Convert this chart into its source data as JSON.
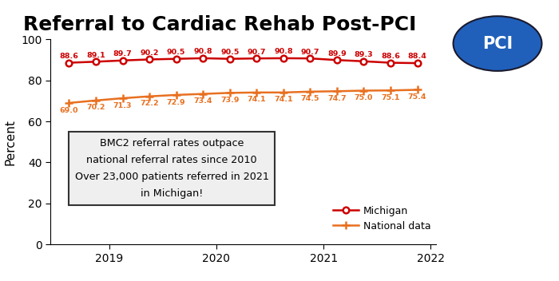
{
  "title": "Referral to Cardiac Rehab Post-PCI",
  "ylabel": "Percent",
  "ylim": [
    0,
    100
  ],
  "yticks": [
    0,
    20,
    40,
    60,
    80,
    100
  ],
  "x_labels": [
    "2019",
    "2020",
    "2021",
    "2022"
  ],
  "x_tick_positions": [
    1.5,
    5.5,
    9.5,
    13.5
  ],
  "michigan_values": [
    88.6,
    89.1,
    89.7,
    90.2,
    90.5,
    90.8,
    90.5,
    90.7,
    90.8,
    90.7,
    89.9,
    89.3,
    88.6,
    88.4
  ],
  "national_values": [
    69.0,
    70.2,
    71.3,
    72.2,
    72.9,
    73.4,
    73.9,
    74.1,
    74.1,
    74.5,
    74.7,
    75.0,
    75.1,
    75.4
  ],
  "x_positions": [
    0,
    1,
    2,
    3,
    4,
    5,
    6,
    7,
    8,
    9,
    10,
    11,
    12,
    13
  ],
  "michigan_color": "#cc0000",
  "national_color": "#e87020",
  "annotation_text": "BMC2 referral rates outpace\nnational referral rates since 2010\nOver 23,000 patients referred in 2021\nin Michigan!",
  "pci_circle_color": "#2060bb",
  "pci_text": "PCI",
  "title_fontsize": 18,
  "label_fontsize": 9,
  "axis_label_fontsize": 11,
  "michigan_label_fontsize": 6.8,
  "national_label_fontsize": 6.8
}
